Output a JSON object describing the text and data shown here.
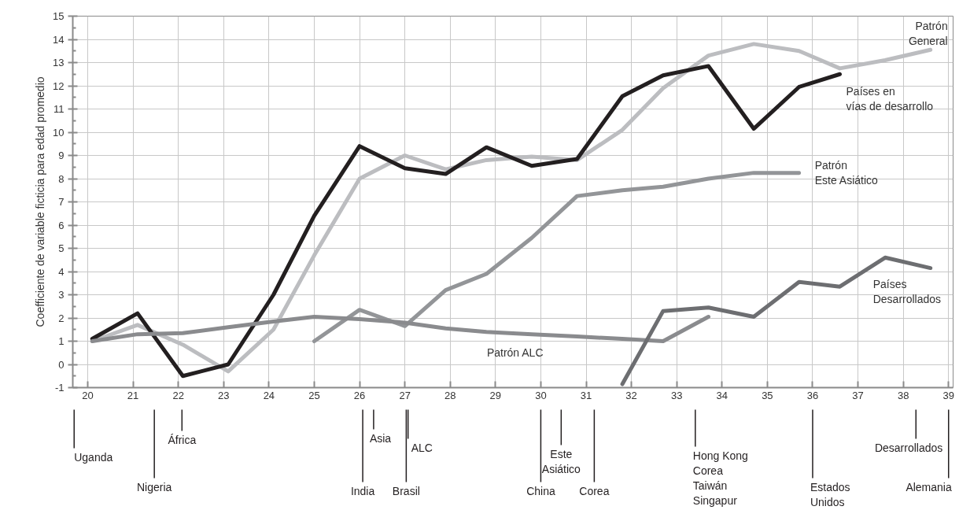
{
  "chart_data": {
    "type": "line",
    "ylabel": "Coefficiente de variable ficticia para edad promedio",
    "xlim": [
      19.67,
      39.1
    ],
    "ylim": [
      -1,
      15
    ],
    "xticks": [
      20,
      21,
      22,
      23,
      24,
      25,
      26,
      27,
      28,
      29,
      30,
      31,
      32,
      33,
      34,
      35,
      36,
      37,
      38,
      39
    ],
    "yticks": [
      -1,
      0,
      1,
      2,
      3,
      4,
      5,
      6,
      7,
      8,
      9,
      10,
      11,
      12,
      13,
      14,
      15
    ],
    "grid": true,
    "marker": "none",
    "line_style": "solid",
    "series": [
      {
        "name": "Patrón\nGeneral",
        "color": "#bcbdc0",
        "x": [
          20.1,
          21.1,
          22.1,
          23.1,
          24.1,
          25.0,
          26.0,
          27.0,
          27.9,
          28.8,
          29.8,
          30.8,
          31.8,
          32.7,
          33.7,
          34.7,
          35.7,
          36.6,
          37.6,
          38.6
        ],
        "values": [
          1.0,
          1.7,
          0.85,
          -0.3,
          1.5,
          4.7,
          8.0,
          9.0,
          8.4,
          8.8,
          8.95,
          8.8,
          10.1,
          11.9,
          13.3,
          13.8,
          13.5,
          12.75,
          13.1,
          13.55
        ]
      },
      {
        "name": "Países en\nvías de desarrollo",
        "color": "#231f20",
        "x": [
          20.1,
          21.1,
          22.1,
          23.1,
          24.1,
          25.0,
          26.0,
          27.0,
          27.9,
          28.8,
          29.8,
          30.8,
          31.8,
          32.7,
          33.7,
          34.7,
          35.7,
          36.6
        ],
        "values": [
          1.1,
          2.2,
          -0.5,
          0.0,
          3.0,
          6.4,
          9.4,
          8.45,
          8.2,
          9.35,
          8.55,
          8.85,
          11.55,
          12.45,
          12.85,
          10.15,
          11.95,
          12.5
        ]
      },
      {
        "name": "Patrón\nEste Asiático",
        "color": "#939598",
        "x": [
          25.0,
          26.0,
          27.0,
          27.9,
          28.8,
          29.8,
          30.8,
          31.8,
          32.7,
          33.7,
          34.7,
          35.7
        ],
        "values": [
          1.0,
          2.35,
          1.65,
          3.2,
          3.9,
          5.45,
          7.25,
          7.5,
          7.65,
          8.0,
          8.25,
          8.25
        ]
      },
      {
        "name": "Patrón ALC",
        "color": "#8a8b8e",
        "x": [
          20.1,
          21.1,
          22.1,
          23.1,
          24.1,
          25.0,
          26.0,
          27.0,
          27.9,
          28.8,
          29.8,
          30.8,
          31.8,
          32.7,
          33.7
        ],
        "values": [
          1.0,
          1.3,
          1.35,
          1.6,
          1.85,
          2.05,
          1.95,
          1.8,
          1.55,
          1.4,
          1.3,
          1.2,
          1.1,
          1.0,
          2.05
        ]
      },
      {
        "name": "Países\nDesarrollados",
        "color": "#6d6e71",
        "x": [
          31.8,
          32.7,
          33.7,
          34.7,
          35.7,
          36.6,
          37.6,
          38.6
        ],
        "values": [
          -0.85,
          2.3,
          2.45,
          2.05,
          3.55,
          3.35,
          4.6,
          4.15
        ]
      }
    ],
    "ref_lines": [
      {
        "axis": "x",
        "value": 19.7,
        "label": "Uganda"
      },
      {
        "axis": "x",
        "value": 21.47,
        "label": "Nigeria"
      },
      {
        "axis": "x",
        "value": 22.08,
        "label": "África"
      },
      {
        "axis": "x",
        "value": 26.07,
        "label": "India"
      },
      {
        "axis": "x",
        "value": 26.31,
        "label": "Asia"
      },
      {
        "axis": "x",
        "value": 27.03,
        "label": "Brasil"
      },
      {
        "axis": "x",
        "value": 27.07,
        "label": "ALC"
      },
      {
        "axis": "x",
        "value": 30.0,
        "label": "China"
      },
      {
        "axis": "x",
        "value": 30.45,
        "label": "Este\nAsiático"
      },
      {
        "axis": "x",
        "value": 31.18,
        "label": "Corea"
      },
      {
        "axis": "x",
        "value": 33.41,
        "label": "Hong Kong\nCorea\nTaiwán\nSingapur"
      },
      {
        "axis": "x",
        "value": 36.0,
        "label": "Estados\nUnidos"
      },
      {
        "axis": "x",
        "value": 38.28,
        "label": "Desarrollados"
      },
      {
        "axis": "x",
        "value": 39.0,
        "label": "Alemania"
      }
    ]
  }
}
